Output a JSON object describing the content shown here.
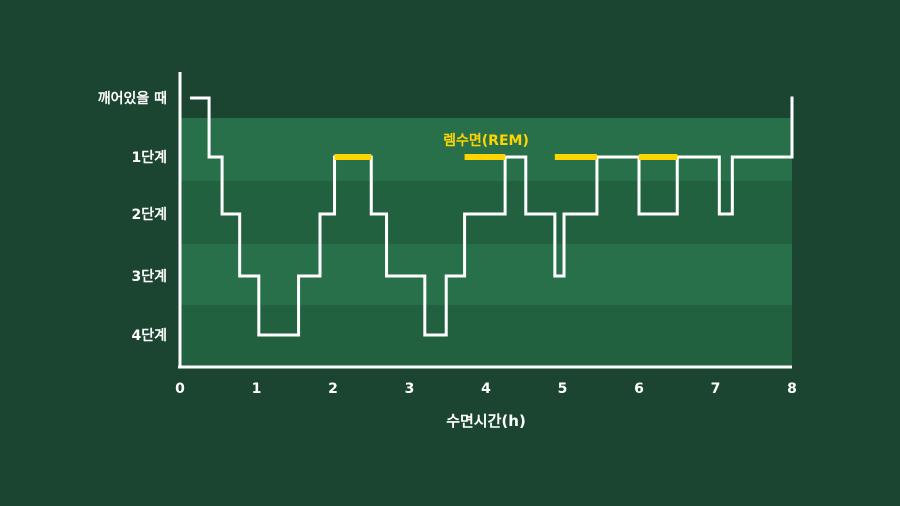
{
  "chart_data": {
    "type": "line",
    "xlabel": "수면시간(h)",
    "xlim": [
      0,
      8
    ],
    "x_ticks": [
      "0",
      "1",
      "2",
      "3",
      "4",
      "5",
      "6",
      "7",
      "8"
    ],
    "y_categories": [
      "깨어있을 때",
      "1단계",
      "2단계",
      "3단계",
      "4단계"
    ],
    "series": [
      {
        "x": [
          0.15,
          0.38,
          0.55,
          0.78,
          1.03,
          1.55,
          1.83,
          2.02,
          2.5,
          2.7,
          3.2,
          3.48,
          3.72,
          4.25,
          4.52,
          4.9,
          5.02,
          5.45,
          6.0,
          6.5,
          7.05,
          7.22,
          8.0
        ],
        "stage": [
          0,
          1,
          2,
          3,
          4,
          3,
          2,
          1,
          2,
          3,
          4,
          3,
          2,
          1,
          2,
          3,
          2,
          1,
          2,
          1,
          2,
          1,
          0
        ]
      }
    ],
    "rem_segments": [
      [
        2.02,
        2.5
      ],
      [
        3.72,
        4.25
      ],
      [
        4.9,
        5.45
      ],
      [
        6.0,
        6.5
      ]
    ],
    "rem_label": "렘수면(REM)",
    "colors": {
      "background": "#1b4530",
      "band_light": "#27704a",
      "band_dark": "#22613f",
      "line": "#ffffff",
      "rem": "#ffd500"
    }
  }
}
